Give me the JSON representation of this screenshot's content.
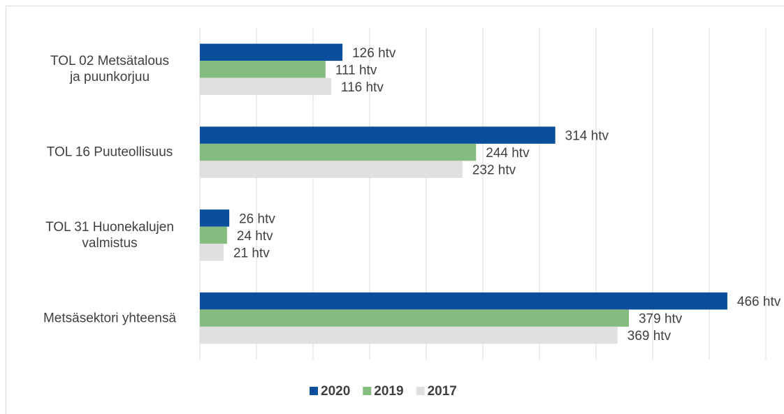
{
  "chart_data": {
    "type": "barh",
    "categories": [
      "TOL 02 Metsätalous\nja puunkorjuu",
      "TOL 16 Puuteollisuus",
      "TOL 31 Huonekalujen\nvalmistus",
      "Metsäsektori yhteensä"
    ],
    "series": [
      {
        "name": "2020",
        "color": "#0b4f9c",
        "values": [
          126,
          314,
          26,
          466
        ],
        "value_labels": [
          "126 htv",
          "314 htv",
          "26 htv",
          "466 htv"
        ]
      },
      {
        "name": "2019",
        "color": "#84bb7e",
        "values": [
          111,
          244,
          24,
          379
        ],
        "value_labels": [
          "111 htv",
          "244 htv",
          "24 htv",
          "379 htv"
        ]
      },
      {
        "name": "2017",
        "color": "#e0e0e0",
        "values": [
          116,
          232,
          21,
          369
        ],
        "value_labels": [
          "116 htv",
          "232 htv",
          "21 htv",
          "369 htv"
        ]
      }
    ],
    "xlim": [
      0,
      500
    ],
    "xticks": [
      0,
      50,
      100,
      150,
      200,
      250,
      300,
      350,
      400,
      450,
      500
    ],
    "grid": true,
    "legend": "bottom"
  }
}
